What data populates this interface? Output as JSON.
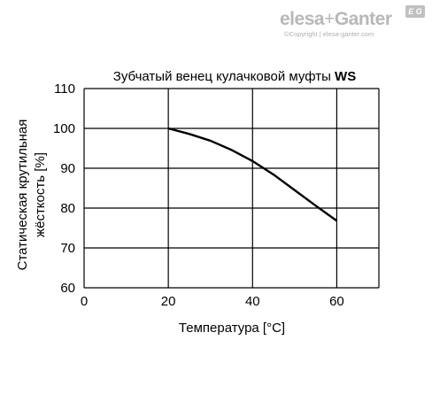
{
  "brand": {
    "logo_part1": "elesa",
    "logo_part2": "+",
    "logo_part3": "Ganter",
    "badge": "E G",
    "copyright": "©Copyright | elesa-ganter.com"
  },
  "chart_data": {
    "type": "line",
    "title_main": "Зубчатый венец кулачковой муфты ",
    "title_bold": "WS",
    "xlabel": "Температура [°C]",
    "ylabel_line1": "Статическая крутильная",
    "ylabel_line2": "жёсткость [%]",
    "xlim": [
      0,
      70
    ],
    "ylim": [
      60,
      110
    ],
    "xticks": [
      0,
      20,
      40,
      60
    ],
    "yticks": [
      60,
      70,
      80,
      90,
      100,
      110
    ],
    "x_grid": [
      0,
      20,
      40,
      60,
      70
    ],
    "y_grid": [
      60,
      70,
      80,
      90,
      100,
      110
    ],
    "grid": true,
    "series": [
      {
        "x": [
          20,
          25,
          30,
          35,
          40,
          45,
          50,
          55,
          60
        ],
        "y": [
          100,
          98.6,
          96.9,
          94.6,
          91.8,
          88.4,
          84.5,
          80.6,
          76.8
        ],
        "color": "#000000"
      }
    ]
  }
}
